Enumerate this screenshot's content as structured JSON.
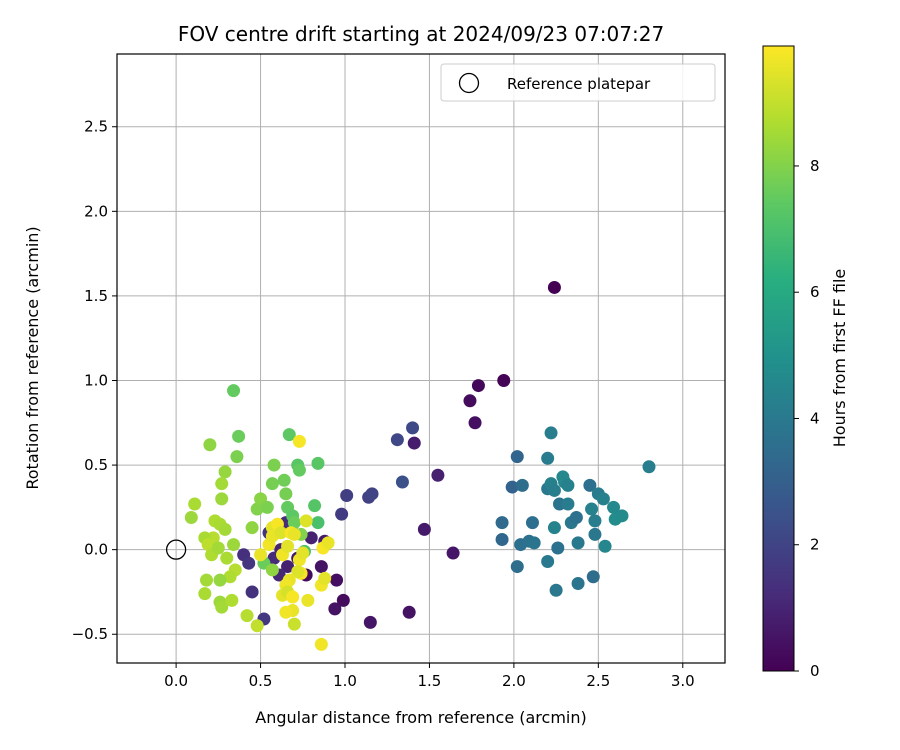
{
  "chart_data": {
    "type": "scatter",
    "title": "FOV centre drift starting at 2024/09/23 07:07:27",
    "xlabel": "Angular distance from reference (arcmin)",
    "ylabel": "Rotation from reference (arcmin)",
    "xlim": [
      -0.35,
      3.25
    ],
    "ylim": [
      -0.67,
      2.93
    ],
    "x_ticks": [
      0.0,
      0.5,
      1.0,
      1.5,
      2.0,
      2.5,
      3.0
    ],
    "y_ticks": [
      -0.5,
      0.0,
      0.5,
      1.0,
      1.5,
      2.0,
      2.5
    ],
    "x_tick_labels": [
      "0.0",
      "0.5",
      "1.0",
      "1.5",
      "2.0",
      "2.5",
      "3.0"
    ],
    "y_tick_labels": [
      "−0.5",
      "0.0",
      "0.5",
      "1.0",
      "1.5",
      "2.0",
      "2.5"
    ],
    "grid": true,
    "legend": {
      "position": "top-right",
      "entries": [
        "Reference platepar"
      ]
    },
    "colorbar": {
      "label": "Hours from first FF file",
      "colormap": "viridis",
      "range": [
        0,
        9.9
      ],
      "ticks": [
        0,
        2,
        4,
        6,
        8
      ],
      "tick_labels": [
        "0",
        "2",
        "4",
        "6",
        "8"
      ]
    },
    "reference_point": {
      "x": 0.0,
      "y": 0.0
    },
    "points": [
      {
        "x": 2.24,
        "y": 1.55,
        "c": 0.0
      },
      {
        "x": 1.94,
        "y": 1.0,
        "c": 0.1
      },
      {
        "x": 1.79,
        "y": 0.97,
        "c": 0.2
      },
      {
        "x": 1.74,
        "y": 0.88,
        "c": 0.3
      },
      {
        "x": 1.77,
        "y": 0.75,
        "c": 0.4
      },
      {
        "x": 1.41,
        "y": 0.63,
        "c": 0.8
      },
      {
        "x": 1.55,
        "y": 0.44,
        "c": 0.9
      },
      {
        "x": 1.47,
        "y": 0.12,
        "c": 0.7
      },
      {
        "x": 1.64,
        "y": -0.02,
        "c": 0.6
      },
      {
        "x": 1.38,
        "y": -0.37,
        "c": 0.5
      },
      {
        "x": 1.15,
        "y": -0.43,
        "c": 0.6
      },
      {
        "x": 0.99,
        "y": -0.3,
        "c": 0.3
      },
      {
        "x": 0.94,
        "y": -0.35,
        "c": 0.5
      },
      {
        "x": 0.95,
        "y": -0.18,
        "c": 0.4
      },
      {
        "x": 0.86,
        "y": -0.1,
        "c": 0.5
      },
      {
        "x": 0.88,
        "y": 0.05,
        "c": 0.7
      },
      {
        "x": 0.77,
        "y": -0.15,
        "c": 0.3
      },
      {
        "x": 0.72,
        "y": -0.05,
        "c": 0.6
      },
      {
        "x": 0.66,
        "y": -0.1,
        "c": 0.9
      },
      {
        "x": 0.62,
        "y": 0.0,
        "c": 1.0
      },
      {
        "x": 0.58,
        "y": -0.05,
        "c": 1.2
      },
      {
        "x": 0.55,
        "y": 0.1,
        "c": 1.4
      },
      {
        "x": 0.65,
        "y": 0.16,
        "c": 1.2
      },
      {
        "x": 0.69,
        "y": 0.1,
        "c": 1.0
      },
      {
        "x": 0.4,
        "y": -0.03,
        "c": 1.3
      },
      {
        "x": 0.43,
        "y": -0.08,
        "c": 1.5
      },
      {
        "x": 0.45,
        "y": -0.25,
        "c": 1.4
      },
      {
        "x": 0.52,
        "y": -0.41,
        "c": 1.6
      },
      {
        "x": 0.61,
        "y": -0.15,
        "c": 1.1
      },
      {
        "x": 0.8,
        "y": 0.07,
        "c": 0.9
      },
      {
        "x": 0.98,
        "y": 0.21,
        "c": 1.7
      },
      {
        "x": 1.01,
        "y": 0.32,
        "c": 1.8
      },
      {
        "x": 1.14,
        "y": 0.31,
        "c": 1.9
      },
      {
        "x": 1.16,
        "y": 0.33,
        "c": 2.0
      },
      {
        "x": 1.31,
        "y": 0.65,
        "c": 2.1
      },
      {
        "x": 1.4,
        "y": 0.72,
        "c": 2.2
      },
      {
        "x": 1.34,
        "y": 0.4,
        "c": 2.4
      },
      {
        "x": 1.93,
        "y": 0.16,
        "c": 3.4
      },
      {
        "x": 1.93,
        "y": 0.06,
        "c": 3.3
      },
      {
        "x": 1.99,
        "y": 0.37,
        "c": 3.1
      },
      {
        "x": 2.02,
        "y": 0.55,
        "c": 3.2
      },
      {
        "x": 2.05,
        "y": 0.38,
        "c": 3.5
      },
      {
        "x": 2.04,
        "y": 0.03,
        "c": 3.6
      },
      {
        "x": 2.02,
        "y": -0.1,
        "c": 3.5
      },
      {
        "x": 2.09,
        "y": 0.05,
        "c": 3.7
      },
      {
        "x": 2.12,
        "y": 0.04,
        "c": 3.8
      },
      {
        "x": 2.11,
        "y": 0.16,
        "c": 3.6
      },
      {
        "x": 2.2,
        "y": -0.07,
        "c": 4.0
      },
      {
        "x": 2.2,
        "y": 0.54,
        "c": 4.1
      },
      {
        "x": 2.22,
        "y": 0.69,
        "c": 4.2
      },
      {
        "x": 2.2,
        "y": 0.36,
        "c": 4.0
      },
      {
        "x": 2.22,
        "y": 0.39,
        "c": 4.3
      },
      {
        "x": 2.24,
        "y": 0.35,
        "c": 4.2
      },
      {
        "x": 2.24,
        "y": 0.13,
        "c": 4.4
      },
      {
        "x": 2.25,
        "y": -0.24,
        "c": 3.9
      },
      {
        "x": 2.27,
        "y": 0.27,
        "c": 3.8
      },
      {
        "x": 2.26,
        "y": 0.01,
        "c": 3.7
      },
      {
        "x": 2.3,
        "y": 0.4,
        "c": 4.5
      },
      {
        "x": 2.29,
        "y": 0.43,
        "c": 4.6
      },
      {
        "x": 2.32,
        "y": 0.38,
        "c": 4.3
      },
      {
        "x": 2.32,
        "y": 0.27,
        "c": 4.1
      },
      {
        "x": 2.34,
        "y": 0.16,
        "c": 3.9
      },
      {
        "x": 2.37,
        "y": 0.19,
        "c": 3.7
      },
      {
        "x": 2.38,
        "y": -0.2,
        "c": 3.8
      },
      {
        "x": 2.38,
        "y": 0.04,
        "c": 4.0
      },
      {
        "x": 2.45,
        "y": 0.38,
        "c": 3.6
      },
      {
        "x": 2.46,
        "y": 0.24,
        "c": 4.4
      },
      {
        "x": 2.48,
        "y": 0.17,
        "c": 4.2
      },
      {
        "x": 2.47,
        "y": -0.16,
        "c": 3.5
      },
      {
        "x": 2.48,
        "y": 0.09,
        "c": 3.9
      },
      {
        "x": 2.5,
        "y": 0.33,
        "c": 4.1
      },
      {
        "x": 2.53,
        "y": 0.3,
        "c": 4.3
      },
      {
        "x": 2.54,
        "y": 0.02,
        "c": 4.5
      },
      {
        "x": 2.59,
        "y": 0.25,
        "c": 4.6
      },
      {
        "x": 2.6,
        "y": 0.18,
        "c": 4.8
      },
      {
        "x": 2.64,
        "y": 0.2,
        "c": 4.7
      },
      {
        "x": 2.8,
        "y": 0.49,
        "c": 4.2
      },
      {
        "x": 0.34,
        "y": 0.94,
        "c": 7.5
      },
      {
        "x": 0.37,
        "y": 0.67,
        "c": 7.6
      },
      {
        "x": 0.36,
        "y": 0.55,
        "c": 7.9
      },
      {
        "x": 0.2,
        "y": 0.62,
        "c": 8.2
      },
      {
        "x": 0.29,
        "y": 0.46,
        "c": 8.3
      },
      {
        "x": 0.27,
        "y": 0.39,
        "c": 8.5
      },
      {
        "x": 0.27,
        "y": 0.3,
        "c": 8.4
      },
      {
        "x": 0.11,
        "y": 0.27,
        "c": 8.6
      },
      {
        "x": 0.09,
        "y": 0.19,
        "c": 8.4
      },
      {
        "x": 0.23,
        "y": 0.17,
        "c": 8.7
      },
      {
        "x": 0.26,
        "y": 0.15,
        "c": 8.6
      },
      {
        "x": 0.29,
        "y": 0.12,
        "c": 8.5
      },
      {
        "x": 0.22,
        "y": 0.07,
        "c": 8.8
      },
      {
        "x": 0.17,
        "y": 0.07,
        "c": 8.6
      },
      {
        "x": 0.19,
        "y": 0.03,
        "c": 8.9
      },
      {
        "x": 0.21,
        "y": -0.03,
        "c": 8.7
      },
      {
        "x": 0.25,
        "y": 0.01,
        "c": 8.5
      },
      {
        "x": 0.34,
        "y": 0.03,
        "c": 8.4
      },
      {
        "x": 0.3,
        "y": -0.05,
        "c": 8.6
      },
      {
        "x": 0.35,
        "y": -0.12,
        "c": 8.8
      },
      {
        "x": 0.32,
        "y": -0.16,
        "c": 8.7
      },
      {
        "x": 0.18,
        "y": -0.18,
        "c": 8.5
      },
      {
        "x": 0.26,
        "y": -0.18,
        "c": 8.3
      },
      {
        "x": 0.17,
        "y": -0.26,
        "c": 8.6
      },
      {
        "x": 0.26,
        "y": -0.31,
        "c": 8.4
      },
      {
        "x": 0.27,
        "y": -0.34,
        "c": 8.5
      },
      {
        "x": 0.33,
        "y": -0.3,
        "c": 8.7
      },
      {
        "x": 0.42,
        "y": -0.39,
        "c": 8.8
      },
      {
        "x": 0.48,
        "y": -0.45,
        "c": 9.0
      },
      {
        "x": 0.45,
        "y": 0.13,
        "c": 8.2
      },
      {
        "x": 0.48,
        "y": 0.24,
        "c": 8.0
      },
      {
        "x": 0.5,
        "y": 0.3,
        "c": 8.1
      },
      {
        "x": 0.54,
        "y": 0.25,
        "c": 7.9
      },
      {
        "x": 0.57,
        "y": 0.39,
        "c": 7.8
      },
      {
        "x": 0.58,
        "y": 0.5,
        "c": 7.9
      },
      {
        "x": 0.64,
        "y": 0.41,
        "c": 7.7
      },
      {
        "x": 0.65,
        "y": 0.33,
        "c": 7.8
      },
      {
        "x": 0.66,
        "y": 0.25,
        "c": 7.5
      },
      {
        "x": 0.69,
        "y": 0.2,
        "c": 7.4
      },
      {
        "x": 0.7,
        "y": 0.16,
        "c": 7.6
      },
      {
        "x": 0.72,
        "y": 0.5,
        "c": 7.3
      },
      {
        "x": 0.73,
        "y": 0.47,
        "c": 7.5
      },
      {
        "x": 0.67,
        "y": 0.68,
        "c": 7.4
      },
      {
        "x": 0.73,
        "y": 0.64,
        "c": 9.8
      },
      {
        "x": 0.82,
        "y": 0.26,
        "c": 7.2
      },
      {
        "x": 0.84,
        "y": 0.51,
        "c": 7.3
      },
      {
        "x": 0.84,
        "y": 0.16,
        "c": 7.0
      },
      {
        "x": 0.76,
        "y": -0.01,
        "c": 7.1
      },
      {
        "x": 0.74,
        "y": 0.09,
        "c": 8.0
      },
      {
        "x": 0.52,
        "y": -0.08,
        "c": 7.6
      },
      {
        "x": 0.57,
        "y": -0.12,
        "c": 8.2
      },
      {
        "x": 0.5,
        "y": -0.03,
        "c": 9.6
      },
      {
        "x": 0.55,
        "y": 0.03,
        "c": 9.7
      },
      {
        "x": 0.57,
        "y": 0.13,
        "c": 9.5
      },
      {
        "x": 0.6,
        "y": 0.15,
        "c": 9.8
      },
      {
        "x": 0.57,
        "y": 0.08,
        "c": 9.6
      },
      {
        "x": 0.62,
        "y": 0.1,
        "c": 9.4
      },
      {
        "x": 0.63,
        "y": -0.03,
        "c": 9.7
      },
      {
        "x": 0.66,
        "y": 0.02,
        "c": 9.5
      },
      {
        "x": 0.68,
        "y": 0.1,
        "c": 9.8
      },
      {
        "x": 0.7,
        "y": 0.09,
        "c": 9.6
      },
      {
        "x": 0.73,
        "y": -0.06,
        "c": 9.7
      },
      {
        "x": 0.75,
        "y": -0.02,
        "c": 9.5
      },
      {
        "x": 0.74,
        "y": -0.14,
        "c": 9.8
      },
      {
        "x": 0.72,
        "y": -0.13,
        "c": 9.4
      },
      {
        "x": 0.67,
        "y": -0.18,
        "c": 9.6
      },
      {
        "x": 0.65,
        "y": -0.21,
        "c": 9.7
      },
      {
        "x": 0.63,
        "y": -0.27,
        "c": 9.5
      },
      {
        "x": 0.66,
        "y": -0.25,
        "c": 9.3
      },
      {
        "x": 0.69,
        "y": -0.28,
        "c": 9.8
      },
      {
        "x": 0.69,
        "y": -0.36,
        "c": 9.6
      },
      {
        "x": 0.65,
        "y": -0.37,
        "c": 9.7
      },
      {
        "x": 0.7,
        "y": -0.44,
        "c": 9.1
      },
      {
        "x": 0.78,
        "y": -0.3,
        "c": 9.6
      },
      {
        "x": 0.77,
        "y": 0.17,
        "c": 9.4
      },
      {
        "x": 0.86,
        "y": -0.21,
        "c": 9.7
      },
      {
        "x": 0.88,
        "y": -0.17,
        "c": 9.5
      },
      {
        "x": 0.87,
        "y": 0.01,
        "c": 9.8
      },
      {
        "x": 0.9,
        "y": 0.04,
        "c": 9.6
      },
      {
        "x": 0.86,
        "y": -0.56,
        "c": 9.7
      }
    ]
  }
}
